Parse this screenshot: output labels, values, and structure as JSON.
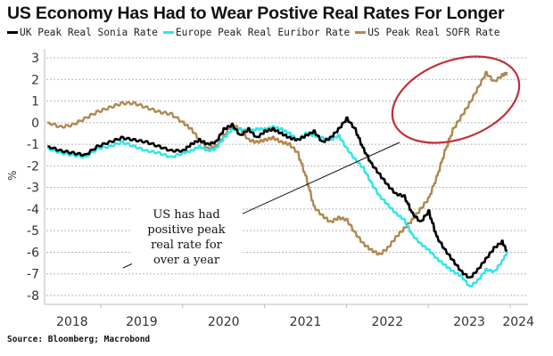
{
  "chart_data": {
    "type": "line",
    "title": "US Economy Has Had to Wear Postive Real Rates For Longer",
    "xlabel": "",
    "ylabel": "%",
    "ylim": [
      -8,
      3
    ],
    "xlim": [
      2018.3,
      2024.25
    ],
    "yticks": [
      "3",
      "2",
      "1",
      "0",
      "-1",
      "-2",
      "-3",
      "-4",
      "-5",
      "-6",
      "-7",
      "-8"
    ],
    "ytick_values": [
      3,
      2,
      1,
      0,
      -1,
      -2,
      -3,
      -4,
      -5,
      -6,
      -7,
      -8
    ],
    "xticks": [
      "2018",
      "2019",
      "2020",
      "2021",
      "2022",
      "2023",
      "2024"
    ],
    "xtick_positions": [
      2018.65,
      2019.5,
      2020.5,
      2021.5,
      2022.5,
      2023.5,
      2024.1
    ],
    "grid": true,
    "legend_position": "top-left",
    "annotation": {
      "lines": [
        "US has had",
        "positive peak",
        "real rate for",
        "over a year"
      ],
      "highlight": "red ellipse around 2022.6-2024 positive region"
    },
    "source": "Source: Bloomberg; Macrobond",
    "x": [
      2018.35,
      2018.5,
      2018.65,
      2018.8,
      2018.95,
      2019.1,
      2019.25,
      2019.4,
      2019.55,
      2019.7,
      2019.85,
      2020.0,
      2020.1,
      2020.2,
      2020.3,
      2020.4,
      2020.5,
      2020.6,
      2020.7,
      2020.8,
      2020.9,
      2021.0,
      2021.1,
      2021.2,
      2021.3,
      2021.4,
      2021.5,
      2021.6,
      2021.7,
      2021.8,
      2021.9,
      2022.0,
      2022.1,
      2022.2,
      2022.3,
      2022.4,
      2022.5,
      2022.6,
      2022.7,
      2022.8,
      2022.9,
      2023.0,
      2023.1,
      2023.2,
      2023.3,
      2023.4,
      2023.5,
      2023.6,
      2023.7,
      2023.8,
      2023.9,
      2023.96
    ],
    "series": [
      {
        "name": "UK Peak Real Sonia Rate",
        "color": "#000000",
        "values": [
          -1.1,
          -1.3,
          -1.4,
          -1.5,
          -1.1,
          -0.9,
          -0.7,
          -0.8,
          -0.9,
          -1.1,
          -1.3,
          -1.3,
          -1.0,
          -0.8,
          -1.0,
          -0.9,
          -0.3,
          -0.1,
          -0.6,
          -0.3,
          -0.7,
          -0.4,
          -0.3,
          -0.5,
          -0.7,
          -0.8,
          -0.6,
          -0.4,
          -0.9,
          -0.7,
          -0.3,
          0.2,
          -0.3,
          -1.2,
          -1.9,
          -2.4,
          -2.9,
          -3.3,
          -3.4,
          -4.2,
          -4.6,
          -4.1,
          -5.3,
          -5.9,
          -6.4,
          -6.9,
          -7.2,
          -6.8,
          -6.3,
          -5.8,
          -5.5,
          -6.0
        ]
      },
      {
        "name": "Europe Peak Real Euribor Rate",
        "color": "#2EE6E6",
        "values": [
          -1.2,
          -1.4,
          -1.5,
          -1.6,
          -1.2,
          -1.1,
          -0.9,
          -1.1,
          -1.3,
          -1.4,
          -1.6,
          -1.4,
          -1.3,
          -1.1,
          -1.3,
          -1.2,
          -0.7,
          -0.3,
          -0.3,
          -0.4,
          -0.3,
          -0.3,
          -0.2,
          -0.3,
          -0.5,
          -0.8,
          -0.5,
          -0.6,
          -0.7,
          -0.8,
          -0.6,
          -1.2,
          -1.7,
          -2.1,
          -2.8,
          -3.4,
          -3.8,
          -4.2,
          -4.5,
          -5.2,
          -5.6,
          -5.9,
          -6.3,
          -6.6,
          -6.9,
          -7.1,
          -7.6,
          -7.3,
          -6.8,
          -6.9,
          -6.4,
          -6.0
        ]
      },
      {
        "name": "US Peak Real SOFR Rate",
        "color": "#B08850",
        "values": [
          0.0,
          -0.2,
          -0.1,
          0.2,
          0.5,
          0.7,
          0.9,
          0.9,
          0.7,
          0.5,
          0.4,
          0.0,
          -0.3,
          -0.8,
          -1.2,
          -1.1,
          -0.6,
          -0.1,
          -0.3,
          -0.8,
          -0.9,
          -0.8,
          -0.7,
          -0.9,
          -1.0,
          -1.4,
          -2.5,
          -3.9,
          -4.3,
          -4.6,
          -4.4,
          -4.5,
          -5.1,
          -5.6,
          -5.9,
          -6.1,
          -5.8,
          -5.3,
          -4.9,
          -4.5,
          -4.0,
          -3.5,
          -2.5,
          -1.3,
          -0.3,
          0.3,
          0.9,
          1.6,
          2.3,
          1.9,
          2.2,
          2.3
        ]
      }
    ]
  },
  "header": {
    "title": "US Economy Has Had to Wear Postive Real Rates For Longer"
  },
  "legend": {
    "items": [
      {
        "label": "UK Peak Real Sonia Rate",
        "color": "#000000"
      },
      {
        "label": "Europe Peak Real Euribor Rate",
        "color": "#2EE6E6"
      },
      {
        "label": "US Peak Real SOFR Rate",
        "color": "#B08850"
      }
    ]
  },
  "footer": {
    "source": "Source: Bloomberg; Macrobond"
  },
  "colors": {
    "highlight": "#C0303A",
    "grid": "#b8b8b8",
    "axis": "#999999"
  }
}
